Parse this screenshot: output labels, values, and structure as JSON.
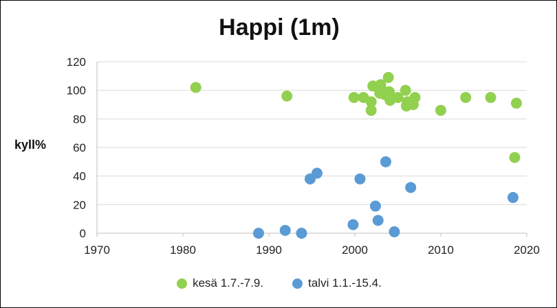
{
  "chart_data": {
    "type": "scatter",
    "title": "Happi (1m)",
    "xlabel": "",
    "ylabel": "kyll%",
    "xlim": [
      1970,
      2020
    ],
    "ylim": [
      0,
      120
    ],
    "xticks": [
      1970,
      1980,
      1990,
      2000,
      2010,
      2020
    ],
    "yticks": [
      0,
      20,
      40,
      60,
      80,
      100,
      120
    ],
    "grid": "horizontal",
    "legend_position": "bottom",
    "series": [
      {
        "name": "kesä 1.7.-7.9.",
        "color": "#92d050",
        "points": [
          [
            1981.5,
            102
          ],
          [
            1992.1,
            96
          ],
          [
            1999.9,
            95
          ],
          [
            2001.0,
            95
          ],
          [
            2001.9,
            92
          ],
          [
            2001.9,
            86
          ],
          [
            2002.1,
            103
          ],
          [
            2002.9,
            98
          ],
          [
            2003.0,
            104
          ],
          [
            2003.2,
            100
          ],
          [
            2003.5,
            97
          ],
          [
            2003.9,
            109
          ],
          [
            2004.0,
            99
          ],
          [
            2004.1,
            93
          ],
          [
            2004.3,
            95
          ],
          [
            2005.0,
            95
          ],
          [
            2005.9,
            100
          ],
          [
            2006.0,
            89
          ],
          [
            2006.1,
            92
          ],
          [
            2006.8,
            90
          ],
          [
            2007.0,
            95
          ],
          [
            2010.0,
            86
          ],
          [
            2012.9,
            95
          ],
          [
            2015.8,
            95
          ],
          [
            2018.6,
            53
          ],
          [
            2018.8,
            91
          ]
        ]
      },
      {
        "name": "talvi 1.1.-15.4.",
        "color": "#5b9bd5",
        "points": [
          [
            1988.8,
            0
          ],
          [
            1991.9,
            2
          ],
          [
            1993.8,
            0
          ],
          [
            1994.8,
            38
          ],
          [
            1995.6,
            42
          ],
          [
            1999.8,
            6
          ],
          [
            2000.6,
            38
          ],
          [
            2002.4,
            19
          ],
          [
            2002.7,
            9
          ],
          [
            2003.6,
            50
          ],
          [
            2004.6,
            1
          ],
          [
            2006.5,
            32
          ],
          [
            2018.4,
            25
          ]
        ]
      }
    ]
  }
}
